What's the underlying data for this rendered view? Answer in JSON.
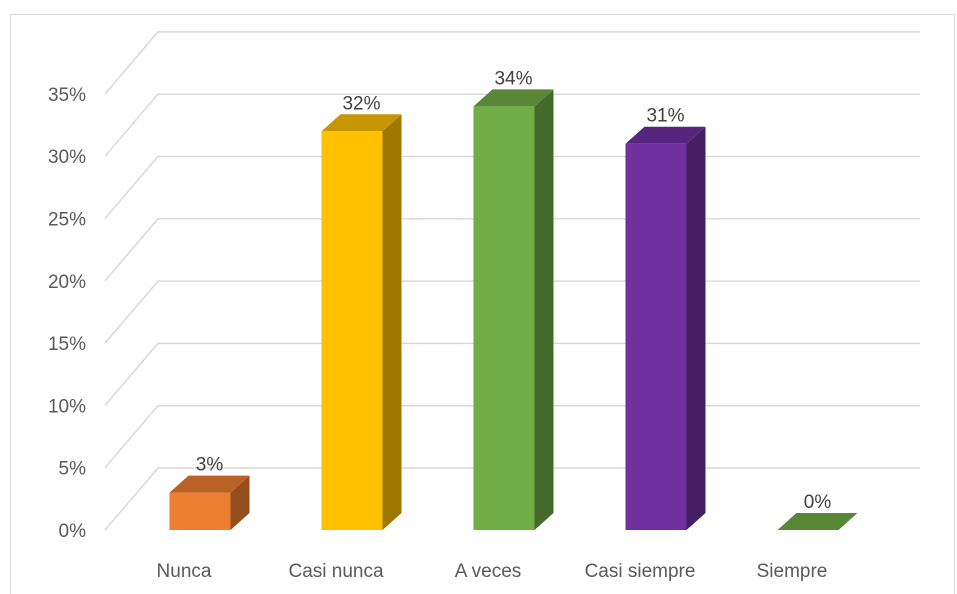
{
  "chart_data": {
    "type": "bar",
    "style": "3d-column",
    "categories": [
      "Nunca",
      "Casi nunca",
      "A veces",
      "Casi siempre",
      "Siempre"
    ],
    "values": [
      3,
      32,
      34,
      31,
      0
    ],
    "data_labels": [
      "3%",
      "32%",
      "34%",
      "31%",
      "0%"
    ],
    "colors": [
      "#ED7D31",
      "#FFC000",
      "#70AD47",
      "#7030A0",
      "#70AD47"
    ],
    "yticks": [
      0,
      5,
      10,
      15,
      20,
      25,
      30,
      35
    ],
    "ytick_labels": [
      "0%",
      "5%",
      "10%",
      "15%",
      "20%",
      "25%",
      "30%",
      "35%"
    ],
    "ylim": [
      0,
      35
    ],
    "grid": true,
    "legend": "none"
  }
}
